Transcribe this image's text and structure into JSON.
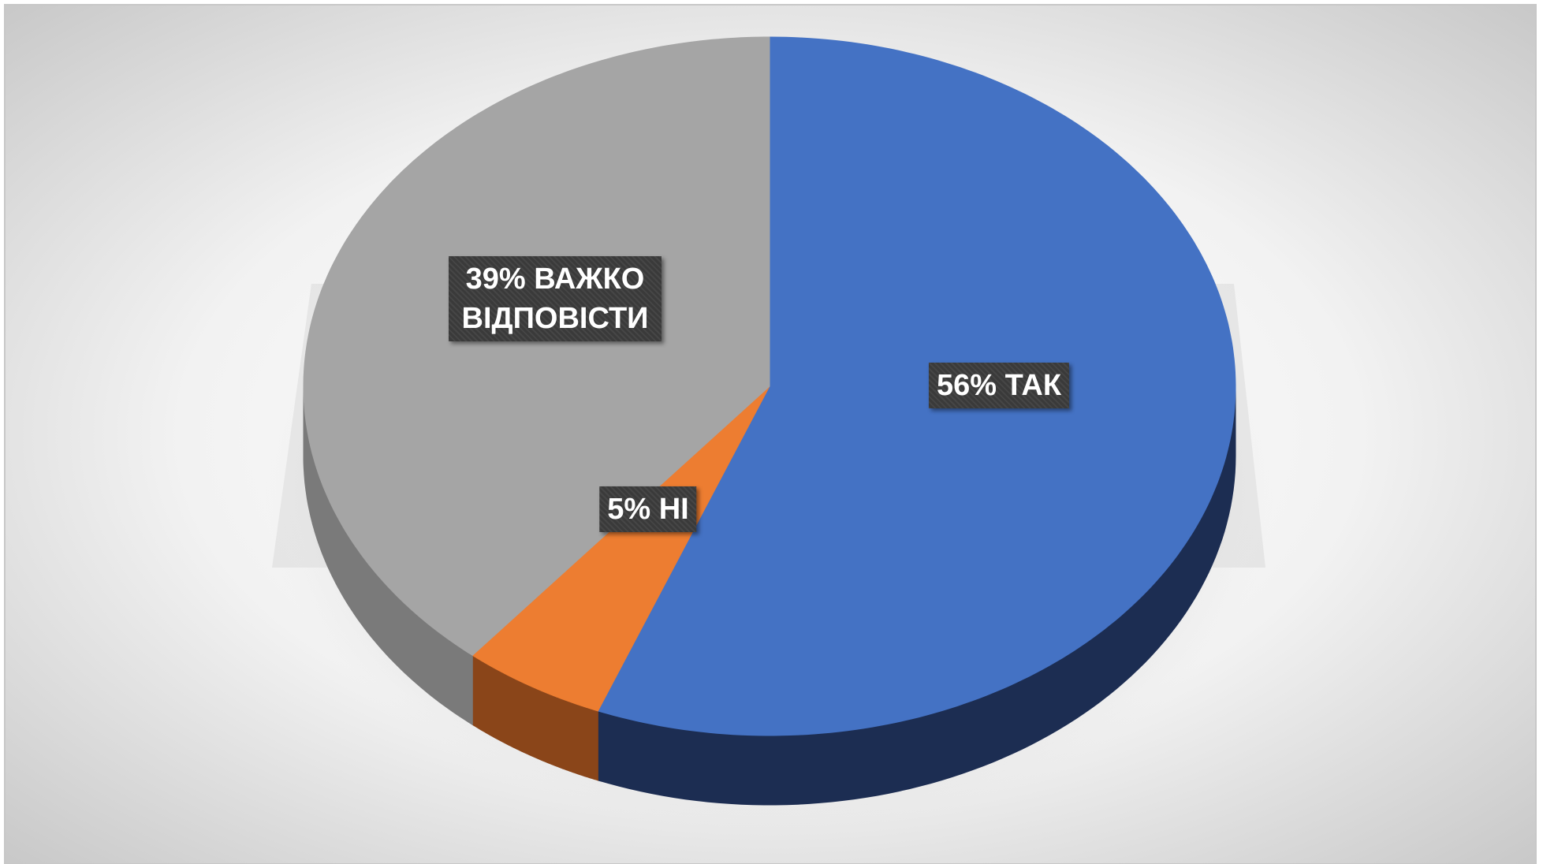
{
  "chart_data": {
    "type": "pie",
    "categories": [
      "ТАК",
      "НІ",
      "ВАЖКО ВІДПОВІСТИ"
    ],
    "values": [
      56,
      5,
      39
    ],
    "value_labels": [
      "56%",
      "5%",
      "39%"
    ],
    "colors": [
      "#4472c4",
      "#ed7d31",
      "#a5a5a5"
    ],
    "side_colors": [
      "#1c2d52",
      "#8a4519",
      "#7a7a7a"
    ]
  }
}
